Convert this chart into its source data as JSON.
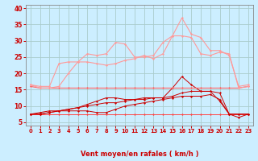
{
  "title": "",
  "xlabel": "Vent moyen/en rafales ( km/h )",
  "background_color": "#cceeff",
  "grid_color": "#aacccc",
  "x_values": [
    0,
    1,
    2,
    3,
    4,
    5,
    6,
    7,
    8,
    9,
    10,
    11,
    12,
    13,
    14,
    15,
    16,
    17,
    18,
    19,
    20,
    21,
    22,
    23
  ],
  "series": [
    {
      "color": "#ff4444",
      "linewidth": 0.7,
      "marker": "D",
      "markersize": 1.5,
      "values": [
        7.5,
        7.5,
        7.5,
        7.5,
        7.5,
        7.5,
        7.5,
        7.5,
        7.5,
        7.5,
        7.5,
        7.5,
        7.5,
        7.5,
        7.5,
        7.5,
        7.5,
        7.5,
        7.5,
        7.5,
        7.5,
        7.5,
        7.5,
        7.5
      ]
    },
    {
      "color": "#cc0000",
      "linewidth": 0.7,
      "marker": "D",
      "markersize": 1.5,
      "values": [
        7.5,
        7.5,
        8.0,
        8.5,
        8.5,
        8.5,
        8.5,
        8.0,
        8.0,
        9.0,
        10.0,
        10.5,
        11.0,
        11.5,
        12.0,
        12.5,
        13.0,
        13.0,
        13.0,
        13.5,
        12.0,
        7.5,
        7.5,
        7.5
      ]
    },
    {
      "color": "#cc0000",
      "linewidth": 0.7,
      "marker": "D",
      "markersize": 1.5,
      "values": [
        7.5,
        7.5,
        8.0,
        8.5,
        9.0,
        9.5,
        10.0,
        10.5,
        11.0,
        11.0,
        11.5,
        12.0,
        12.0,
        12.5,
        12.5,
        13.0,
        14.0,
        14.5,
        14.5,
        14.5,
        14.0,
        7.5,
        7.5,
        7.5
      ]
    },
    {
      "color": "#cc0000",
      "linewidth": 0.7,
      "marker": "D",
      "markersize": 1.5,
      "values": [
        7.5,
        8.0,
        8.5,
        8.5,
        9.0,
        9.5,
        10.5,
        11.5,
        12.5,
        12.5,
        12.0,
        12.0,
        12.5,
        12.5,
        12.5,
        15.5,
        19.0,
        16.5,
        14.5,
        14.5,
        11.5,
        7.5,
        6.5,
        7.5
      ]
    },
    {
      "color": "#ff6666",
      "linewidth": 0.8,
      "marker": "D",
      "markersize": 1.5,
      "values": [
        16.0,
        15.5,
        15.5,
        15.5,
        15.5,
        15.5,
        15.5,
        15.5,
        15.5,
        15.5,
        15.5,
        15.5,
        15.5,
        15.5,
        15.5,
        15.5,
        15.5,
        15.5,
        15.5,
        15.5,
        15.5,
        15.5,
        15.5,
        16.0
      ]
    },
    {
      "color": "#ff9999",
      "linewidth": 0.8,
      "marker": "D",
      "markersize": 1.5,
      "values": [
        16.5,
        15.5,
        15.5,
        16.0,
        20.0,
        23.5,
        23.5,
        23.0,
        22.5,
        23.0,
        24.0,
        24.5,
        25.5,
        24.5,
        26.0,
        31.5,
        31.5,
        31.0,
        26.0,
        25.5,
        26.5,
        26.0,
        15.5,
        16.0
      ]
    },
    {
      "color": "#ff9999",
      "linewidth": 0.8,
      "marker": "D",
      "markersize": 1.5,
      "values": [
        16.5,
        16.0,
        16.0,
        23.0,
        23.5,
        23.5,
        26.0,
        25.5,
        26.0,
        29.5,
        29.0,
        25.0,
        25.0,
        25.5,
        29.5,
        31.5,
        37.0,
        32.0,
        31.0,
        27.0,
        27.0,
        25.5,
        16.0,
        16.5
      ]
    }
  ],
  "ylim": [
    4,
    41
  ],
  "yticks": [
    5,
    10,
    15,
    20,
    25,
    30,
    35,
    40
  ],
  "xlim": [
    -0.5,
    23.5
  ],
  "tick_color": "#cc0000",
  "label_color": "#cc0000",
  "axis_color": "#888888",
  "arrow_color": "#cc0000"
}
